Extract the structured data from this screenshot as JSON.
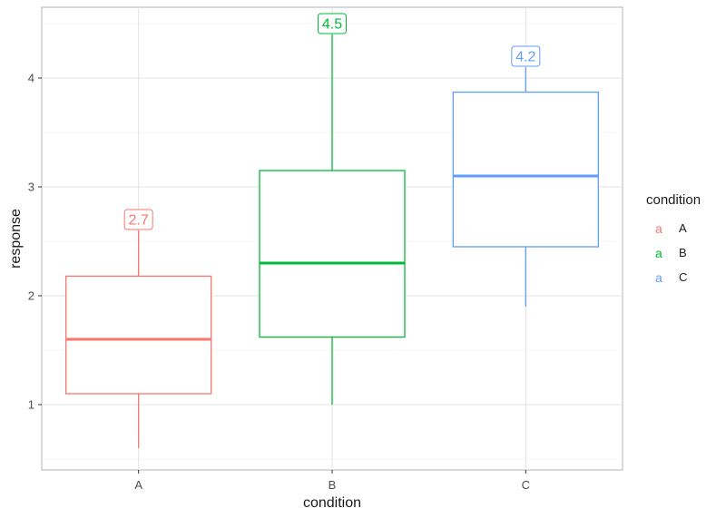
{
  "chart_data": {
    "type": "boxplot",
    "xlabel": "condition",
    "ylabel": "response",
    "categories": [
      "A",
      "B",
      "C"
    ],
    "ylim": [
      0.4,
      4.65
    ],
    "y_ticks": [
      1,
      2,
      3,
      4
    ],
    "grid": true,
    "legend": {
      "title": "condition",
      "position": "right",
      "key_glyph": "a"
    },
    "series": [
      {
        "name": "A",
        "color": "#F8766D",
        "whisker_low": 0.6,
        "q1": 1.1,
        "median": 1.6,
        "q3": 2.18,
        "whisker_high": 2.6,
        "max_label": "2.7"
      },
      {
        "name": "B",
        "color": "#00BA38",
        "whisker_low": 1.0,
        "q1": 1.62,
        "median": 2.3,
        "q3": 3.15,
        "whisker_high": 4.4,
        "max_label": "4.5"
      },
      {
        "name": "C",
        "color": "#619CFF",
        "whisker_low": 1.9,
        "q1": 2.45,
        "median": 3.1,
        "q3": 3.87,
        "whisker_high": 4.1,
        "max_label": "4.2"
      }
    ]
  }
}
